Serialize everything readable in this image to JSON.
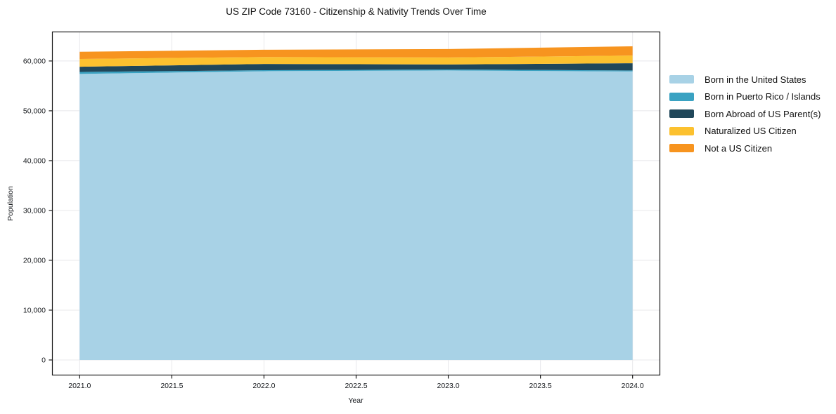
{
  "page": {
    "background": "#ffffff"
  },
  "chart_data": {
    "type": "area",
    "stacked": true,
    "title": "US ZIP Code 73160 - Citizenship & Nativity Trends Over Time",
    "xlabel": "Year",
    "ylabel": "Population",
    "x": [
      2021,
      2022,
      2023,
      2024
    ],
    "series": [
      {
        "name": "Born in the United States",
        "color": "#a8d2e6",
        "values": [
          57400,
          57950,
          58100,
          57900
        ]
      },
      {
        "name": "Born in Puerto Rico / Islands",
        "color": "#3aa2c2",
        "values": [
          400,
          200,
          200,
          200
        ]
      },
      {
        "name": "Born Abroad of US Parent(s)",
        "color": "#20475a",
        "values": [
          1050,
          1250,
          1000,
          1450
        ]
      },
      {
        "name": "Naturalized US Citizen",
        "color": "#fcc12f",
        "values": [
          1550,
          1400,
          1400,
          1550
        ]
      },
      {
        "name": "Not a US Citizen",
        "color": "#f7941f",
        "values": [
          1450,
          1450,
          1700,
          1850
        ]
      }
    ],
    "xlim": [
      2020.85,
      2024.15
    ],
    "ylim": [
      -3100,
      65900
    ],
    "xticks": {
      "values": [
        2021.0,
        2021.5,
        2022.0,
        2022.5,
        2023.0,
        2023.5,
        2024.0
      ],
      "labels": [
        "2021.0",
        "2021.5",
        "2022.0",
        "2022.5",
        "2023.0",
        "2023.5",
        "2024.0"
      ]
    },
    "yticks": {
      "values": [
        0,
        10000,
        20000,
        30000,
        40000,
        50000,
        60000
      ],
      "labels": [
        "0",
        "10,000",
        "20,000",
        "30,000",
        "40,000",
        "50,000",
        "60,000"
      ]
    },
    "grid": true,
    "grid_color": "#e8e8eb",
    "frame_color": "#1a1a1a",
    "tick_label_color": "#15181c",
    "legend_position": "right"
  }
}
